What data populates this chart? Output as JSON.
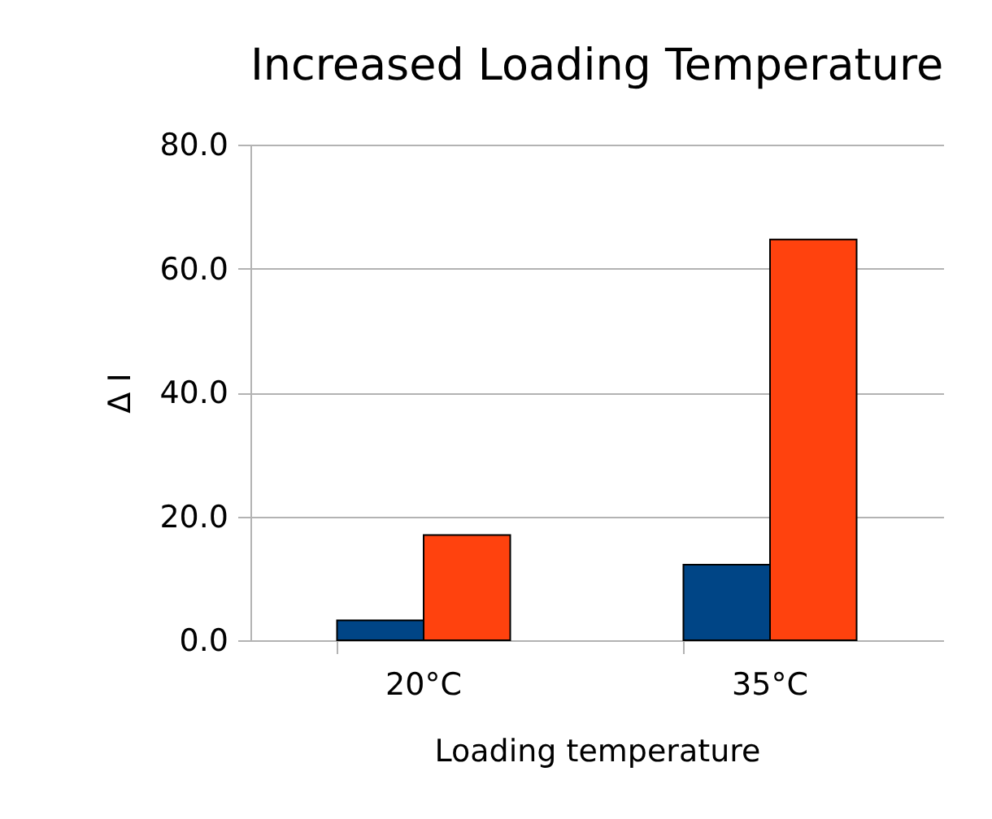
{
  "chart_data": {
    "type": "bar",
    "title": "Increased Loading Temperature",
    "xlabel": "Loading temperature",
    "ylabel": "Δ I",
    "categories": [
      "20°C",
      "35°C"
    ],
    "series": [
      {
        "color": "#004586",
        "values": [
          3.2,
          12.2
        ]
      },
      {
        "color": "#ff420e",
        "values": [
          17.0,
          64.7
        ]
      }
    ],
    "ylim": [
      0,
      80
    ],
    "yticks": [
      {
        "value": 0,
        "label": "0.0"
      },
      {
        "value": 20,
        "label": "20.0"
      },
      {
        "value": 40,
        "label": "40.0"
      },
      {
        "value": 60,
        "label": "60.0"
      },
      {
        "value": 80,
        "label": "80.0"
      }
    ],
    "grid": "y",
    "legend": false
  }
}
